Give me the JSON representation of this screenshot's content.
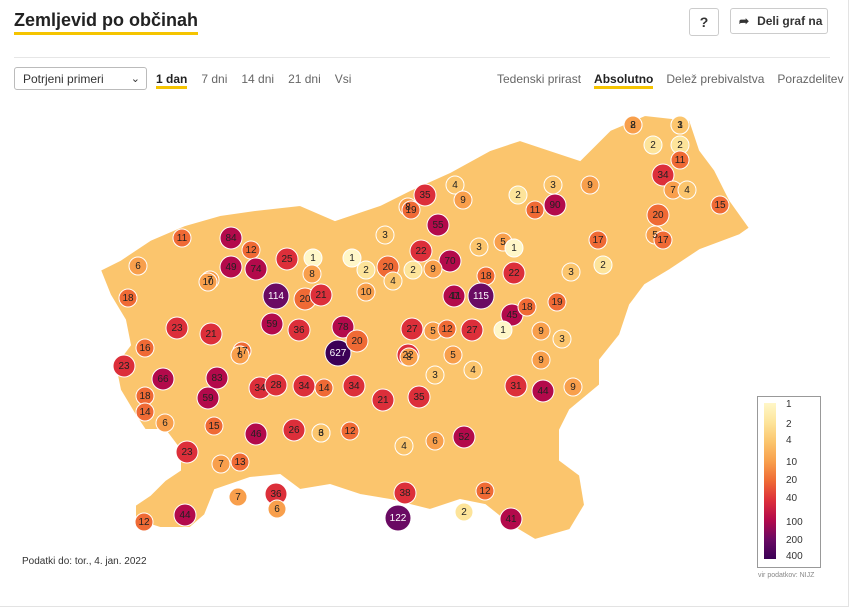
{
  "header": {
    "title": "Zemljevid po občinah",
    "help_label": "?",
    "share_label": "Deli graf na"
  },
  "controls": {
    "select_value": "Potrjeni primeri",
    "periods": [
      "1 dan",
      "7 dni",
      "14 dni",
      "21 dni",
      "Vsi"
    ],
    "active_period": "1 dan",
    "modes": [
      "Tedenski prirast",
      "Absolutno",
      "Delež prebivalstva",
      "Porazdelitev"
    ],
    "active_mode": "Absolutno"
  },
  "map": {
    "labels": [
      "2",
      "1",
      "2",
      "2",
      "11",
      "34",
      "7",
      "4",
      "35",
      "4",
      "2",
      "3",
      "9",
      "90",
      "20",
      "15",
      "8",
      "19",
      "55",
      "9",
      "11",
      "3",
      "17",
      "5",
      "17",
      "84",
      "12",
      "11",
      "6",
      "25",
      "1",
      "1",
      "2",
      "20",
      "22",
      "70",
      "3",
      "5",
      "1",
      "49",
      "74",
      "8",
      "7",
      "10",
      "2",
      "9",
      "4",
      "18",
      "22",
      "3",
      "2",
      "18",
      "10",
      "114",
      "20",
      "21",
      "11",
      "47",
      "115",
      "45",
      "18",
      "9",
      "19",
      "23",
      "21",
      "59",
      "36",
      "27",
      "5",
      "12",
      "27",
      "1",
      "3",
      "16",
      "17",
      "6",
      "627",
      "78",
      "20",
      "22",
      "5",
      "9",
      "23",
      "66",
      "83",
      "34",
      "28",
      "34",
      "14",
      "34",
      "21",
      "35",
      "3",
      "4",
      "31",
      "44",
      "9",
      "18",
      "14",
      "59",
      "6",
      "15",
      "46",
      "26",
      "6",
      "12",
      "52",
      "3",
      "4",
      "23",
      "7",
      "13",
      "38",
      "12",
      "36",
      "7",
      "6",
      "12",
      "44",
      "122",
      "2",
      "41",
      "8",
      "6",
      "8",
      "3"
    ],
    "max_value": 627
  },
  "legend": {
    "ticks": [
      "1",
      "2",
      "4",
      "10",
      "20",
      "40",
      "100",
      "200",
      "400"
    ]
  },
  "colors": {
    "accent": "#f5c400",
    "scale": [
      "#fff7c8",
      "#fde49a",
      "#fbc56d",
      "#f89f4c",
      "#ef6a35",
      "#dc2f3a",
      "#b30a4b",
      "#6a0a63",
      "#3b0056"
    ]
  },
  "footer": {
    "date_text": "Podatki do: tor., 4. jan. 2022",
    "source_text": "vir podatkov: NIJZ"
  }
}
